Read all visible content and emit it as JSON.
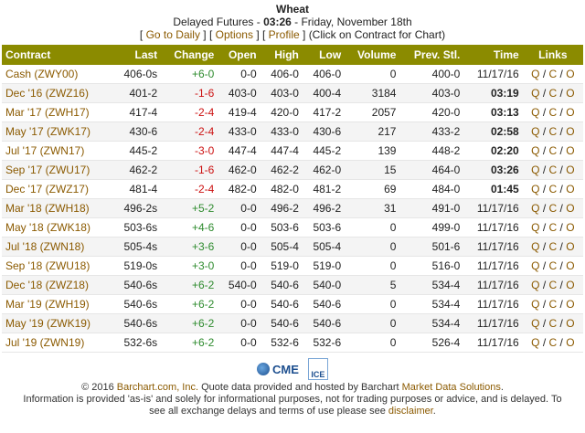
{
  "header": {
    "title": "Wheat",
    "subtitle_prefix": "Delayed Futures - ",
    "time": "03:26",
    "subtitle_suffix": " - Friday, November 18th",
    "nav": {
      "go_daily": "Go to Daily",
      "options": "Options",
      "profile": "Profile",
      "note": "(Click on Contract for Chart)"
    }
  },
  "table": {
    "columns": [
      "Contract",
      "Last",
      "Change",
      "Open",
      "High",
      "Low",
      "Volume",
      "Prev. Stl.",
      "Time",
      "Links"
    ],
    "rows": [
      {
        "contract": "Cash (ZWY00)",
        "last": "406-0s",
        "change": "+6-0",
        "dir": "pos",
        "open": "0-0",
        "high": "406-0",
        "low": "406-0",
        "volume": "0",
        "prev": "400-0",
        "time": "11/17/16",
        "bold": false
      },
      {
        "contract": "Dec '16 (ZWZ16)",
        "last": "401-2",
        "change": "-1-6",
        "dir": "neg",
        "open": "403-0",
        "high": "403-0",
        "low": "400-4",
        "volume": "3184",
        "prev": "403-0",
        "time": "03:19",
        "bold": true
      },
      {
        "contract": "Mar '17 (ZWH17)",
        "last": "417-4",
        "change": "-2-4",
        "dir": "neg",
        "open": "419-4",
        "high": "420-0",
        "low": "417-2",
        "volume": "2057",
        "prev": "420-0",
        "time": "03:13",
        "bold": true
      },
      {
        "contract": "May '17 (ZWK17)",
        "last": "430-6",
        "change": "-2-4",
        "dir": "neg",
        "open": "433-0",
        "high": "433-0",
        "low": "430-6",
        "volume": "217",
        "prev": "433-2",
        "time": "02:58",
        "bold": true
      },
      {
        "contract": "Jul '17 (ZWN17)",
        "last": "445-2",
        "change": "-3-0",
        "dir": "neg",
        "open": "447-4",
        "high": "447-4",
        "low": "445-2",
        "volume": "139",
        "prev": "448-2",
        "time": "02:20",
        "bold": true
      },
      {
        "contract": "Sep '17 (ZWU17)",
        "last": "462-2",
        "change": "-1-6",
        "dir": "neg",
        "open": "462-0",
        "high": "462-2",
        "low": "462-0",
        "volume": "15",
        "prev": "464-0",
        "time": "03:26",
        "bold": true
      },
      {
        "contract": "Dec '17 (ZWZ17)",
        "last": "481-4",
        "change": "-2-4",
        "dir": "neg",
        "open": "482-0",
        "high": "482-0",
        "low": "481-2",
        "volume": "69",
        "prev": "484-0",
        "time": "01:45",
        "bold": true
      },
      {
        "contract": "Mar '18 (ZWH18)",
        "last": "496-2s",
        "change": "+5-2",
        "dir": "pos",
        "open": "0-0",
        "high": "496-2",
        "low": "496-2",
        "volume": "31",
        "prev": "491-0",
        "time": "11/17/16",
        "bold": false
      },
      {
        "contract": "May '18 (ZWK18)",
        "last": "503-6s",
        "change": "+4-6",
        "dir": "pos",
        "open": "0-0",
        "high": "503-6",
        "low": "503-6",
        "volume": "0",
        "prev": "499-0",
        "time": "11/17/16",
        "bold": false
      },
      {
        "contract": "Jul '18 (ZWN18)",
        "last": "505-4s",
        "change": "+3-6",
        "dir": "pos",
        "open": "0-0",
        "high": "505-4",
        "low": "505-4",
        "volume": "0",
        "prev": "501-6",
        "time": "11/17/16",
        "bold": false
      },
      {
        "contract": "Sep '18 (ZWU18)",
        "last": "519-0s",
        "change": "+3-0",
        "dir": "pos",
        "open": "0-0",
        "high": "519-0",
        "low": "519-0",
        "volume": "0",
        "prev": "516-0",
        "time": "11/17/16",
        "bold": false
      },
      {
        "contract": "Dec '18 (ZWZ18)",
        "last": "540-6s",
        "change": "+6-2",
        "dir": "pos",
        "open": "540-0",
        "high": "540-6",
        "low": "540-0",
        "volume": "5",
        "prev": "534-4",
        "time": "11/17/16",
        "bold": false
      },
      {
        "contract": "Mar '19 (ZWH19)",
        "last": "540-6s",
        "change": "+6-2",
        "dir": "pos",
        "open": "0-0",
        "high": "540-6",
        "low": "540-6",
        "volume": "0",
        "prev": "534-4",
        "time": "11/17/16",
        "bold": false
      },
      {
        "contract": "May '19 (ZWK19)",
        "last": "540-6s",
        "change": "+6-2",
        "dir": "pos",
        "open": "0-0",
        "high": "540-6",
        "low": "540-6",
        "volume": "0",
        "prev": "534-4",
        "time": "11/17/16",
        "bold": false
      },
      {
        "contract": "Jul '19 (ZWN19)",
        "last": "532-6s",
        "change": "+6-2",
        "dir": "pos",
        "open": "0-0",
        "high": "532-6",
        "low": "532-6",
        "volume": "0",
        "prev": "526-4",
        "time": "11/17/16",
        "bold": false
      }
    ],
    "links": [
      "Q",
      "C",
      "O"
    ],
    "colors": {
      "header_bg": "#8B8B00",
      "positive": "#2e8b2e",
      "negative": "#cc1111",
      "link": "#8B5A00"
    }
  },
  "logos": {
    "cme": "CME",
    "ice": "ICE"
  },
  "footer": {
    "line1_prefix": "© 2016 ",
    "barchart_link": "Barchart.com, Inc.",
    "line1_mid": " Quote data provided and hosted by Barchart ",
    "mds_link": "Market Data Solutions",
    "line1_end": ".",
    "line2": "Information is provided 'as-is' and solely for informational purposes, not for trading purposes or advice, and is delayed. To",
    "line3_prefix": "see all exchange delays and terms of use please see ",
    "disclaimer_link": "disclaimer",
    "line3_end": "."
  }
}
